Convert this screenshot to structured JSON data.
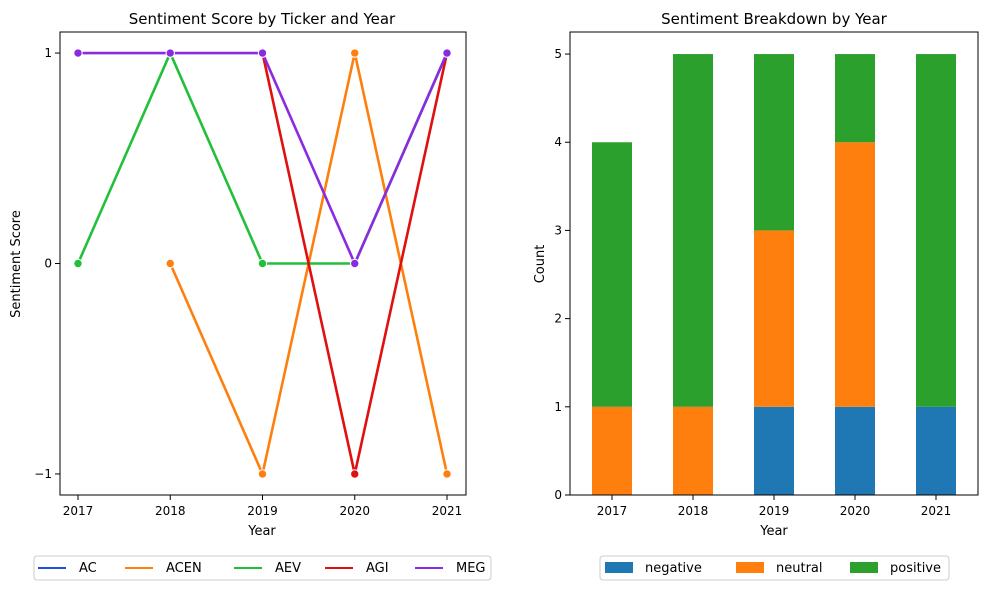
{
  "chart_data": [
    {
      "type": "line",
      "title": "Sentiment Score by Ticker and Year",
      "xlabel": "Year",
      "ylabel": "Sentiment Score",
      "x": [
        "2017",
        "2018",
        "2019",
        "2020",
        "2021"
      ],
      "yticks": [
        "−1",
        "0",
        "1"
      ],
      "ylim": [
        -1.1,
        1.1
      ],
      "legend_position": "bottom",
      "series": [
        {
          "name": "AC",
          "color": "#1f4fd8",
          "values": [
            null,
            null,
            null,
            null,
            null
          ]
        },
        {
          "name": "ACEN",
          "color": "#ff7f0e",
          "values": [
            null,
            0,
            -1,
            1,
            -1
          ]
        },
        {
          "name": "AEV",
          "color": "#22c03a",
          "values": [
            0,
            1,
            0,
            0,
            1
          ]
        },
        {
          "name": "AGI",
          "color": "#e01010",
          "values": [
            null,
            null,
            1,
            -1,
            1
          ]
        },
        {
          "name": "MEG",
          "color": "#8a2be2",
          "values": [
            1,
            1,
            1,
            0,
            1
          ]
        }
      ]
    },
    {
      "type": "bar",
      "stacked": true,
      "title": "Sentiment Breakdown by Year",
      "xlabel": "Year",
      "ylabel": "Count",
      "categories": [
        "2017",
        "2018",
        "2019",
        "2020",
        "2021"
      ],
      "yticks": [
        "0",
        "1",
        "2",
        "3",
        "4",
        "5"
      ],
      "ylim": [
        0,
        5.25
      ],
      "legend_position": "bottom",
      "series": [
        {
          "name": "negative",
          "color": "#1f77b4",
          "values": [
            0,
            0,
            1,
            1,
            1
          ]
        },
        {
          "name": "neutral",
          "color": "#ff7f0e",
          "values": [
            1,
            1,
            2,
            3,
            0
          ]
        },
        {
          "name": "positive",
          "color": "#2ca02c",
          "values": [
            3,
            4,
            2,
            1,
            4
          ]
        }
      ]
    }
  ]
}
